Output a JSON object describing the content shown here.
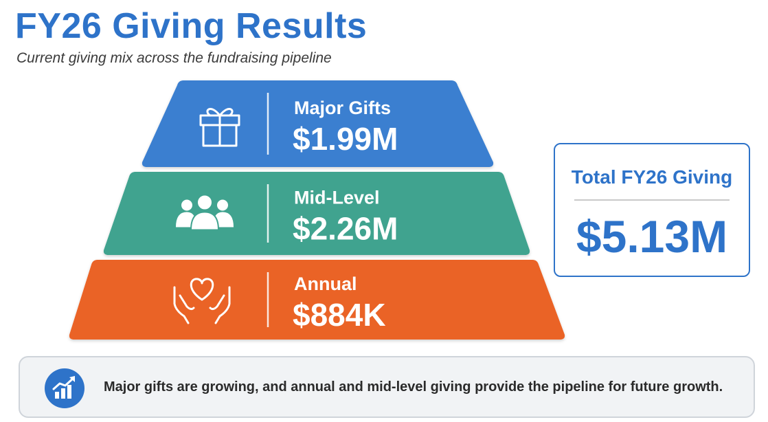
{
  "header": {
    "title": "FY26 Giving Results",
    "subtitle": "Current giving mix across the fundraising pipeline"
  },
  "chart_data": {
    "type": "pyramid",
    "categories": [
      "Major Gifts",
      "Mid-Level",
      "Annual"
    ],
    "values": [
      1990000,
      2260000,
      884000
    ],
    "value_labels": [
      "$1.99M",
      "$2.26M",
      "$884K"
    ],
    "icons": [
      "gift-icon",
      "people-icon",
      "heart-hands-icon"
    ],
    "colors": [
      "#3a7fd0",
      "#3fa38f",
      "#ea6428"
    ]
  },
  "total": {
    "label": "Total FY26 Giving",
    "value": "$5.13M"
  },
  "insight": {
    "icon": "growth-chart-icon",
    "text": "Major gifts are growing, and annual and mid-level giving provide the pipeline for future growth."
  }
}
